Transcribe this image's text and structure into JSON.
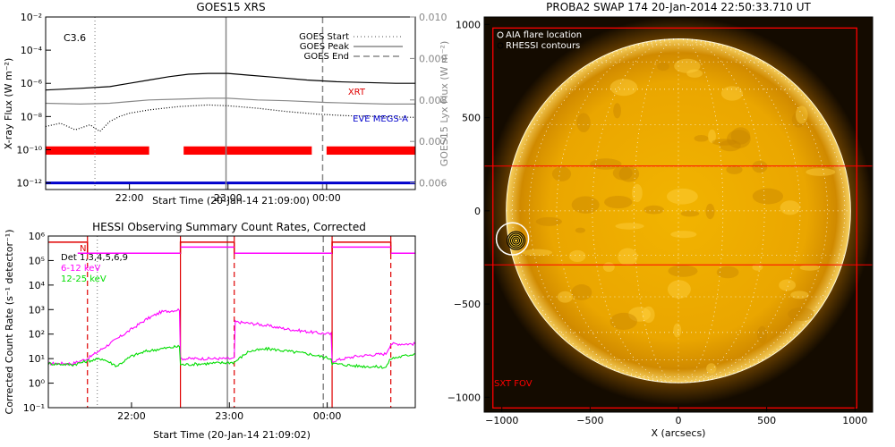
{
  "chart_data": [
    {
      "type": "line",
      "title": "GOES15 XRS",
      "xlabel": "Start Time (20-Jan-14 21:09:00)",
      "ylabel": "X-ray Flux (W m⁻²)",
      "ylabel_right": "GOES15 Lyx Flux (W m⁻²)",
      "x_ticks": [
        "22:00",
        "23:00",
        "00:00"
      ],
      "y_ticks": [
        "10⁻²",
        "10⁻⁴",
        "10⁻⁶",
        "10⁻⁸",
        "10⁻¹⁰",
        "10⁻¹²"
      ],
      "y_ticks_right": [
        "0.010",
        "0.009",
        "0.008",
        "0.007",
        "0.006"
      ],
      "flare_class": "C3.6",
      "legend": [
        "GOES Start",
        "GOES Peak",
        "GOES End"
      ],
      "labels": {
        "xrt": "XRT",
        "eve": "EVE MEGS-A"
      },
      "ylim_log10": [
        -12.4,
        -2
      ],
      "xlim_hours": [
        21.15,
        24.9
      ],
      "markers": {
        "start_hours": 21.65,
        "peak_hours": 22.98,
        "end_hours": 23.96
      },
      "coverage_bars": [
        [
          21.15,
          22.2
        ],
        [
          22.55,
          23.85
        ],
        [
          24.0,
          24.9
        ]
      ],
      "colors": {
        "xrt": "#e00000",
        "eve": "#0000cc",
        "coverage": "#ff0000",
        "series_long": "#000000",
        "lya": "#888888"
      },
      "series": [
        {
          "color": "#000000",
          "x": [
            21.15,
            21.5,
            21.8,
            22.0,
            22.2,
            22.4,
            22.6,
            22.8,
            23.0,
            23.2,
            23.5,
            23.8,
            24.1,
            24.4,
            24.7,
            24.9
          ],
          "y": [
            -6.4,
            -6.3,
            -6.2,
            -6.0,
            -5.8,
            -5.6,
            -5.45,
            -5.4,
            -5.4,
            -5.5,
            -5.65,
            -5.8,
            -5.9,
            -5.95,
            -6.0,
            -6.0
          ]
        },
        {
          "color": "#888888",
          "x": [
            21.15,
            21.5,
            21.8,
            22.0,
            22.2,
            22.5,
            22.8,
            23.0,
            23.3,
            23.6,
            24.0,
            24.3,
            24.6,
            24.9
          ],
          "y": [
            -7.2,
            -7.25,
            -7.2,
            -7.1,
            -7.0,
            -6.95,
            -6.9,
            -6.9,
            -7.0,
            -7.05,
            -7.15,
            -7.2,
            -7.25,
            -7.25
          ]
        },
        {
          "color": "#000000",
          "style": "dotted",
          "x": [
            21.15,
            21.3,
            21.45,
            21.6,
            21.7,
            21.8,
            21.9,
            22.0,
            22.2,
            22.5,
            22.8,
            23.0,
            23.3,
            23.6,
            23.9,
            24.2,
            24.5,
            24.9
          ],
          "y": [
            -8.6,
            -8.4,
            -8.8,
            -8.5,
            -8.9,
            -8.3,
            -8.0,
            -7.8,
            -7.6,
            -7.4,
            -7.3,
            -7.35,
            -7.5,
            -7.7,
            -7.85,
            -7.95,
            -8.0,
            -8.05
          ]
        }
      ]
    },
    {
      "type": "line",
      "title": "HESSI Observing Summary Count Rates, Corrected",
      "xlabel": "Start Time (20-Jan-14 21:09:02)",
      "ylabel": "Corrected Count Rate (s⁻¹ detector⁻¹)",
      "x_ticks": [
        "22:00",
        "23:00",
        "00:00"
      ],
      "y_ticks": [
        "10⁶",
        "10⁵",
        "10⁴",
        "10³",
        "10²",
        "10¹",
        "10⁰",
        "10⁻¹"
      ],
      "ylim_log10": [
        -1,
        6
      ],
      "xlim_hours": [
        21.15,
        24.9
      ],
      "legend": [
        {
          "name": "Det 1,3,4,5,6,9",
          "color": "#000000"
        },
        {
          "name": "6-12 keV",
          "color": "#ff00ff"
        },
        {
          "name": "12-25 keV",
          "color": "#00dd00"
        }
      ],
      "night_label": "N",
      "night_state": [
        [
          21.15,
          21.55,
          1
        ],
        [
          21.55,
          22.5,
          0
        ],
        [
          22.5,
          23.05,
          1
        ],
        [
          23.05,
          24.05,
          0
        ],
        [
          24.05,
          24.65,
          1
        ],
        [
          24.65,
          24.9,
          0
        ]
      ],
      "attenuator_lines": [
        21.55,
        22.5,
        23.05,
        24.05,
        24.65
      ],
      "red_solid_lines": [
        22.5,
        24.05
      ],
      "markers": {
        "start_hours": 21.65,
        "peak_hours": 22.98,
        "end_hours": 23.96
      },
      "series": [
        {
          "name": "6-12 keV",
          "color": "#ff00ff",
          "x": [
            21.15,
            21.4,
            21.55,
            21.7,
            21.85,
            22.0,
            22.15,
            22.3,
            22.49,
            22.5,
            23.05,
            23.06,
            23.3,
            23.6,
            23.9,
            24.04,
            24.05,
            24.3,
            24.6,
            24.65,
            24.9
          ],
          "y": [
            0.8,
            0.8,
            1.0,
            1.4,
            1.8,
            2.2,
            2.6,
            2.9,
            3.0,
            1.0,
            1.0,
            2.5,
            2.4,
            2.2,
            2.05,
            2.0,
            0.9,
            1.1,
            1.2,
            1.6,
            1.6
          ]
        },
        {
          "name": "12-25 keV",
          "color": "#00dd00",
          "x": [
            21.15,
            21.4,
            21.55,
            21.7,
            21.85,
            22.0,
            22.15,
            22.3,
            22.49,
            22.5,
            23.05,
            23.2,
            23.4,
            23.6,
            23.8,
            24.04,
            24.05,
            24.3,
            24.6,
            24.65,
            24.9
          ],
          "y": [
            0.8,
            0.75,
            0.9,
            1.0,
            0.7,
            1.1,
            1.3,
            1.4,
            1.5,
            0.75,
            0.85,
            1.3,
            1.4,
            1.3,
            1.2,
            1.0,
            0.8,
            0.7,
            0.65,
            1.0,
            1.2
          ]
        }
      ]
    },
    {
      "type": "scatter",
      "title": "PROBA2 SWAP 174 20-Jan-2014 22:50:33.710 UT",
      "xlabel": "X (arcsecs)",
      "ylabel": "",
      "x_ticks": [
        "−1000",
        "−500",
        "0",
        "500",
        "1000"
      ],
      "y_ticks": [
        "1000",
        "500",
        "0",
        "−500",
        "−1000"
      ],
      "xlim": [
        -1100,
        1100
      ],
      "ylim": [
        -1080,
        1040
      ],
      "legend": [
        "AIA flare location",
        "RHESSI contours"
      ],
      "fov_label": "SXT FOV",
      "solar_radius_arcsec": 975,
      "flare_location": [
        -940,
        -150
      ],
      "overlay_box_x": [
        -1000,
        1000
      ],
      "overlay_box_y": [
        -1000,
        1000
      ],
      "overlay_band_y": [
        -290,
        240
      ],
      "grid_step_deg": 15,
      "colors": {
        "sun_core": "#f0b000",
        "sun_edge": "#7a4a00",
        "background": "#140b00",
        "overlay": "#ff0000"
      }
    }
  ]
}
